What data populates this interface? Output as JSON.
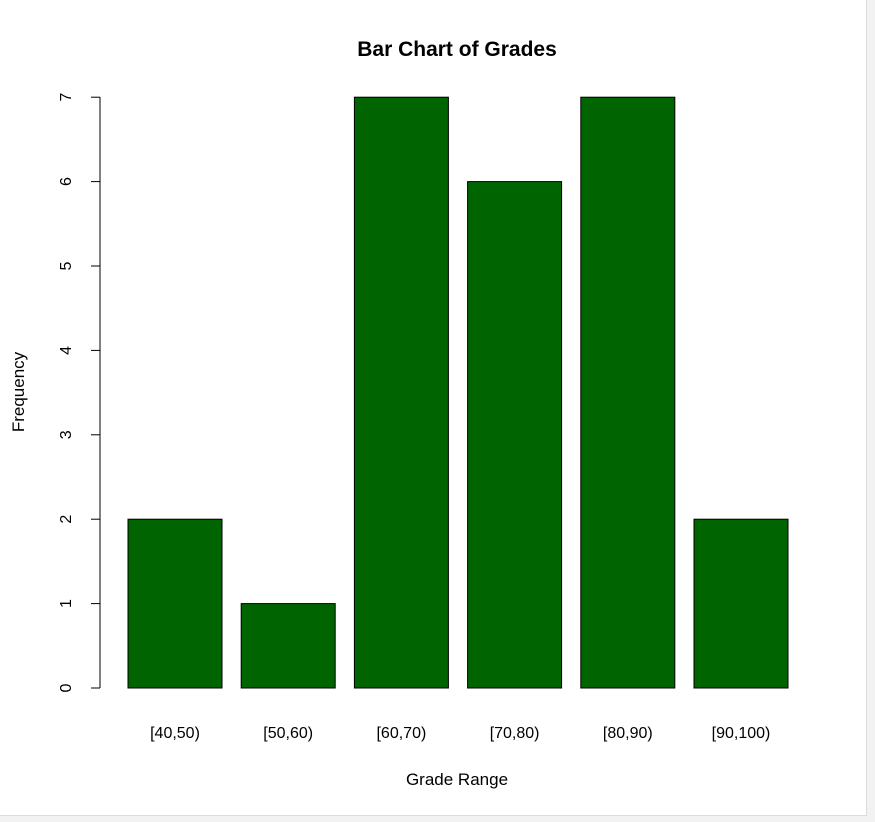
{
  "chart_data": {
    "type": "bar",
    "title": "Bar Chart of Grades",
    "xlabel": "Grade Range",
    "ylabel": "Frequency",
    "categories": [
      "[40,50)",
      "[50,60)",
      "[60,70)",
      "[70,80)",
      "[80,90)",
      "[90,100)"
    ],
    "values": [
      2,
      1,
      7,
      6,
      7,
      2
    ],
    "ylim": [
      0,
      7
    ],
    "yticks": [
      "0",
      "1",
      "2",
      "3",
      "4",
      "5",
      "6",
      "7"
    ],
    "grid": false,
    "legend": "none",
    "bar_color": "#006400",
    "bar_border_color": "#000000"
  }
}
